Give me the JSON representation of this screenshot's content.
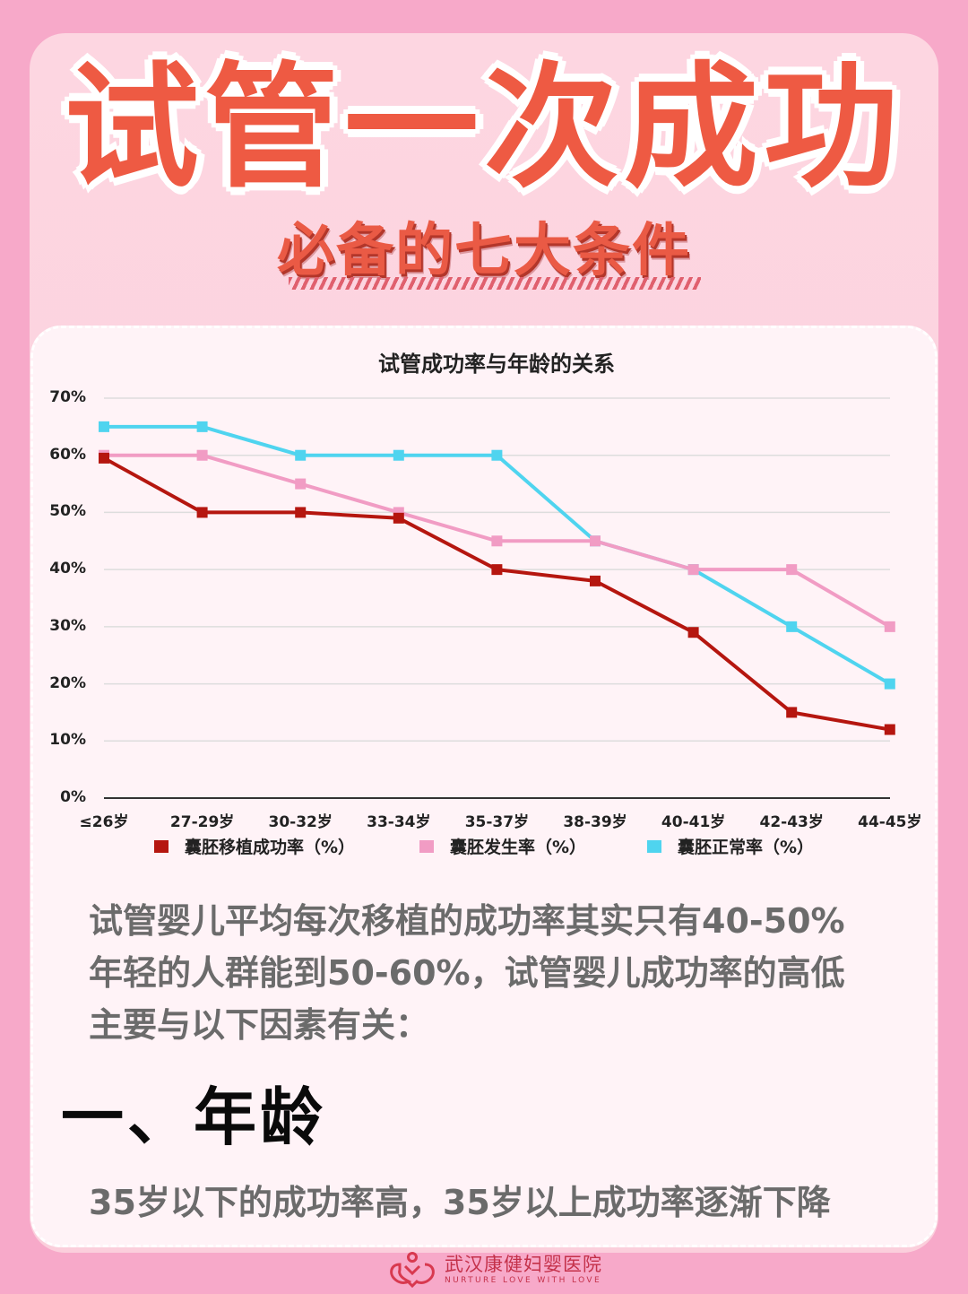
{
  "header": {
    "title": "试管一次成功",
    "subtitle": "必备的七大条件"
  },
  "colors": {
    "background": "#f7a9c9",
    "card": "#fdd6e1",
    "title": "#ee5a43",
    "panel": "#fff3f7",
    "series_transfer": "#b5160f",
    "series_blastocyst": "#f19cc4",
    "series_normal": "#4fd4ef"
  },
  "chart_data": {
    "type": "line",
    "title": "试管成功率与年龄的关系",
    "xlabel": "",
    "ylabel": "",
    "ylim": [
      0,
      70
    ],
    "yticks": [
      "0%",
      "10%",
      "20%",
      "30%",
      "40%",
      "50%",
      "60%",
      "70%"
    ],
    "grid": true,
    "legend_position": "bottom",
    "categories": [
      "≤26岁",
      "27-29岁",
      "30-32岁",
      "33-34岁",
      "35-37岁",
      "38-39岁",
      "40-41岁",
      "42-43岁",
      "44-45岁"
    ],
    "series": [
      {
        "name": "囊胚移植成功率（%）",
        "color": "#b5160f",
        "values": [
          59.5,
          50,
          50,
          49,
          40,
          38,
          29,
          15,
          12
        ]
      },
      {
        "name": "囊胚发生率（%）",
        "color": "#f19cc4",
        "values": [
          60,
          60,
          55,
          50,
          45,
          45,
          40,
          40,
          30
        ]
      },
      {
        "name": "囊胚正常率（%）",
        "color": "#4fd4ef",
        "values": [
          65,
          65,
          60,
          60,
          60,
          45,
          40,
          30,
          20
        ]
      }
    ]
  },
  "content": {
    "paragraph_lines": [
      "试管婴儿平均每次移植的成功率其实只有40-50%",
      "年轻的人群能到50-60%，试管婴儿成功率的高低",
      "主要与以下因素有关："
    ],
    "section_heading": "一、年龄",
    "section_text": "35岁以下的成功率高，35岁以上成功率逐渐下降"
  },
  "footer": {
    "logo_icon": "hospital-logo-icon",
    "name_cn": "武汉康健妇婴医院",
    "name_en": "NURTURE LOVE WITH LOVE"
  }
}
